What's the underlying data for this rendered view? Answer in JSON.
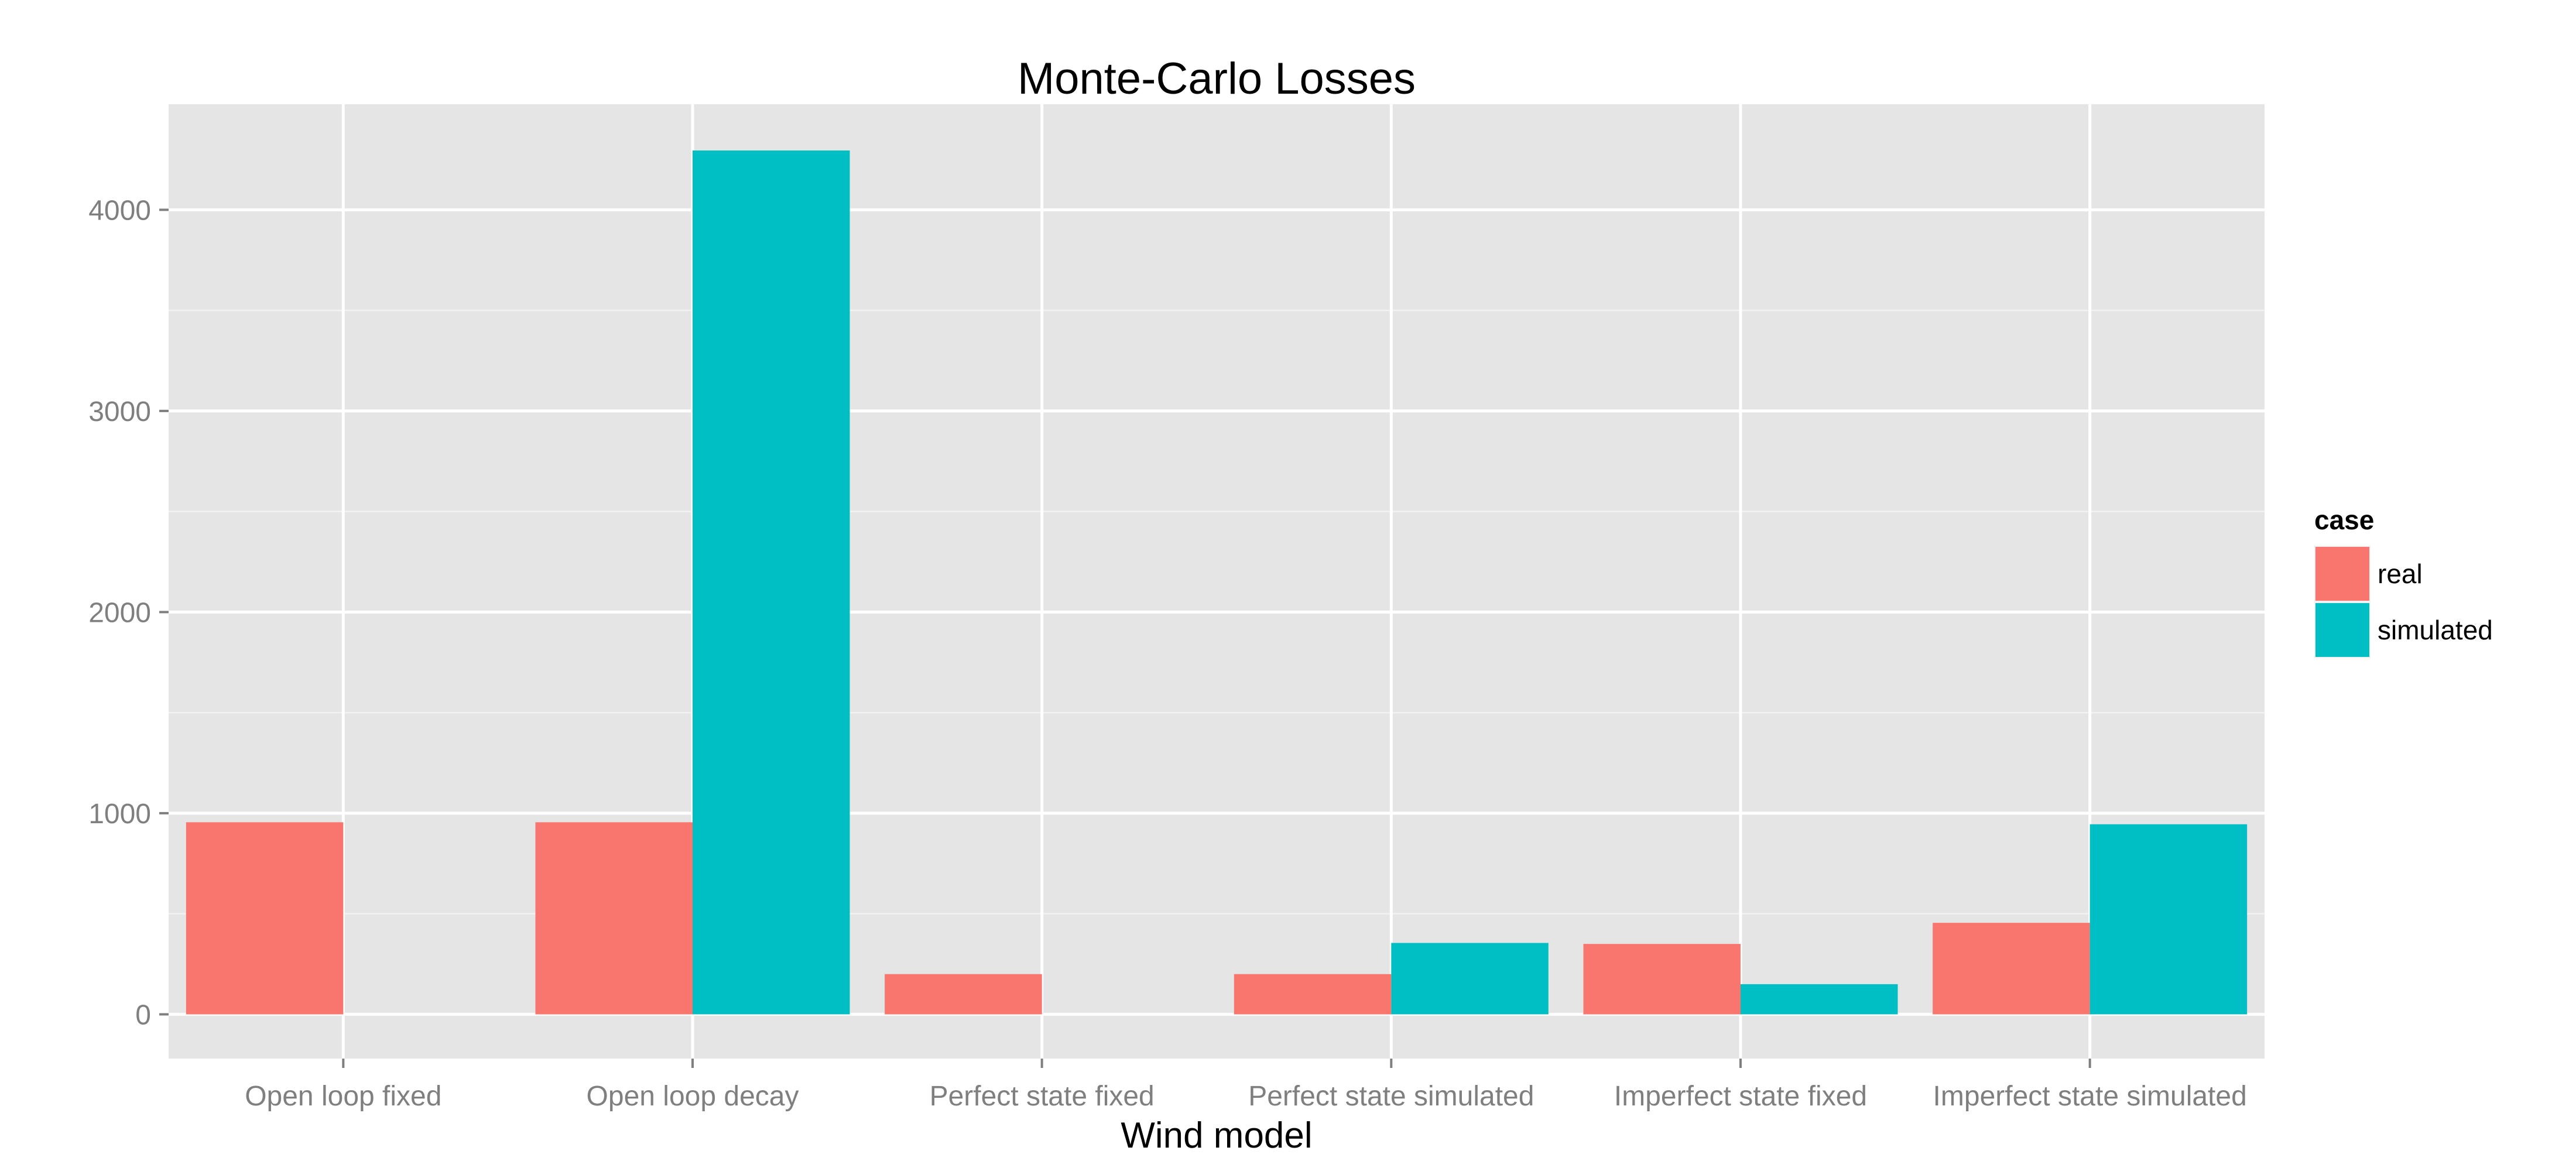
{
  "chart_data": {
    "type": "bar",
    "title": "Monte-Carlo Losses",
    "xlabel": "Wind model",
    "ylabel": "",
    "categories": [
      "Open loop fixed",
      "Open loop decay",
      "Perfect state fixed",
      "Perfect state simulated",
      "Imperfect state fixed",
      "Imperfect state simulated"
    ],
    "series": [
      {
        "name": "real",
        "color": "#F8766D",
        "values": [
          955,
          955,
          200,
          200,
          350,
          455
        ]
      },
      {
        "name": "simulated",
        "color": "#00BFC4",
        "values": [
          0,
          4295,
          0,
          355,
          150,
          945
        ]
      }
    ],
    "ylim": [
      -220,
      4525
    ],
    "yticks": [
      0,
      1000,
      2000,
      3000,
      4000
    ],
    "yticks_minor": [
      500,
      1500,
      2500,
      3500
    ],
    "grid": true,
    "legend": {
      "title": "case",
      "position": "right"
    },
    "panel_background": "#E5E5E5",
    "grid_color": "#FFFFFF"
  }
}
